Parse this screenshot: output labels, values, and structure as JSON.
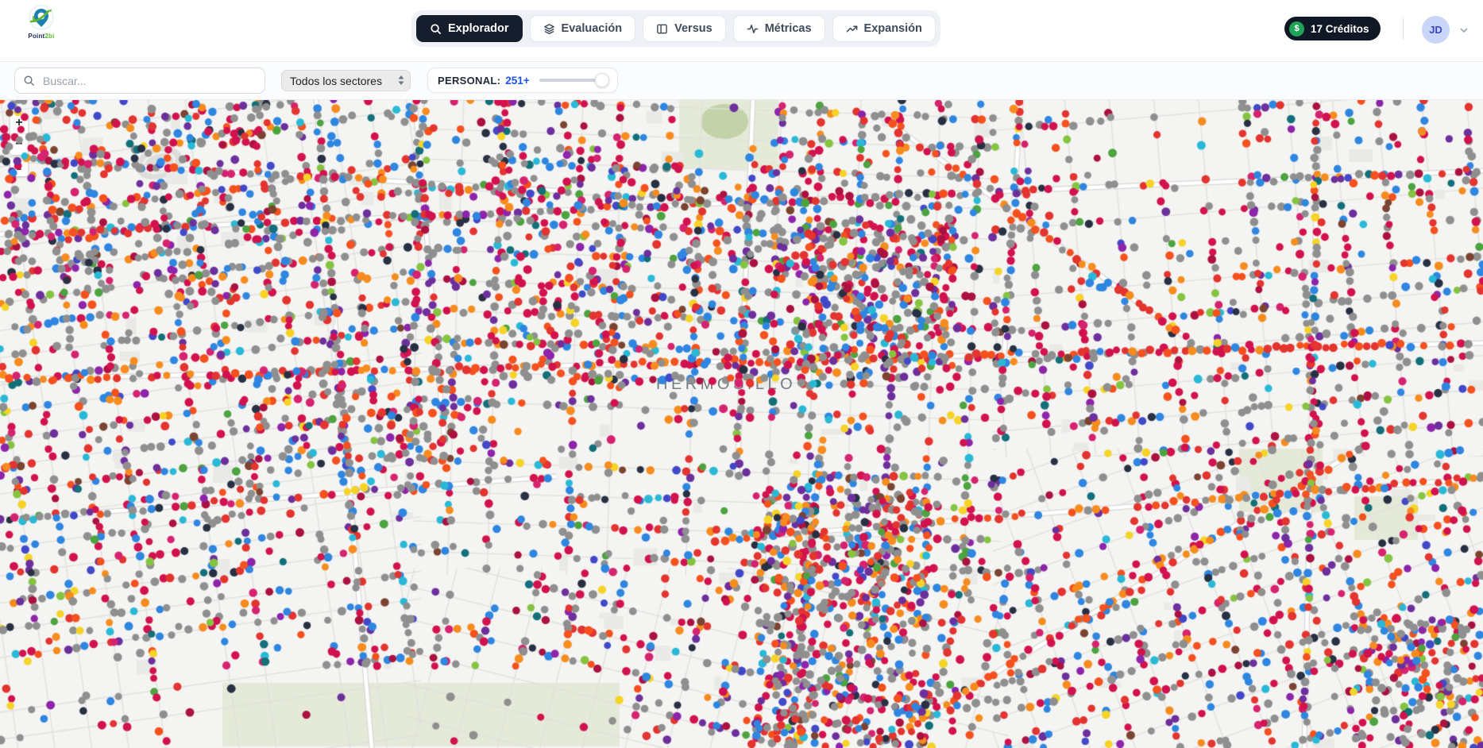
{
  "app": {
    "logo_text_primary": "Point",
    "logo_text_secondary": "2bi"
  },
  "nav": {
    "tabs": [
      {
        "label": "Explorador",
        "active": true
      },
      {
        "label": "Evaluación",
        "active": false
      },
      {
        "label": "Versus",
        "active": false
      },
      {
        "label": "Métricas",
        "active": false
      },
      {
        "label": "Expansión",
        "active": false
      }
    ]
  },
  "account": {
    "credits_symbol": "$",
    "credits_text": "17  Créditos",
    "avatar_initials": "JD"
  },
  "toolbar": {
    "search": {
      "placeholder": "Buscar..."
    },
    "sector_select": {
      "value": "Todos los sectores",
      "options": [
        "Todos los sectores"
      ]
    },
    "personal_filter": {
      "label": "PERSONAL:",
      "value": "251+",
      "slider_position": 1
    }
  },
  "map": {
    "city_label": "HERMOSILLO",
    "controls": {
      "zoom_in": "+",
      "zoom_out": "−",
      "compass": "▲"
    },
    "theme": {
      "bg": "#f4f4f2",
      "street": "#e1e1df",
      "road_casing": "#d8d8d5",
      "road_fill": "#ffffff",
      "park": "#e4ead7",
      "park_dark": "#c3d2a8",
      "building": "#e9e9e7",
      "stadium": "#dedddb"
    },
    "dots": {
      "seed": 20240613,
      "radius": 4.4,
      "palette": [
        [
          "#8f8f8f",
          28
        ],
        [
          "#d2124e",
          13
        ],
        [
          "#ab1141",
          3
        ],
        [
          "#e3342f",
          8
        ],
        [
          "#f4511e",
          5
        ],
        [
          "#f78c1e",
          6
        ],
        [
          "#2e86e0",
          10
        ],
        [
          "#4149c8",
          2
        ],
        [
          "#29b9d6",
          3
        ],
        [
          "#6d2f9c",
          5
        ],
        [
          "#8e24aa",
          2
        ],
        [
          "#d5236f",
          3
        ],
        [
          "#283044",
          3
        ],
        [
          "#4ca33f",
          2
        ],
        [
          "#85c440",
          1.5
        ],
        [
          "#f5d327",
          2
        ],
        [
          "#13707a",
          1.5
        ],
        [
          "#7b4430",
          1
        ]
      ],
      "hot_palette": [
        [
          "#f4511e",
          30
        ],
        [
          "#e3342f",
          22
        ],
        [
          "#f78c1e",
          18
        ],
        [
          "#d2124e",
          15
        ],
        [
          "#8f8f8f",
          10
        ],
        [
          "#2e86e0",
          5
        ]
      ]
    }
  }
}
